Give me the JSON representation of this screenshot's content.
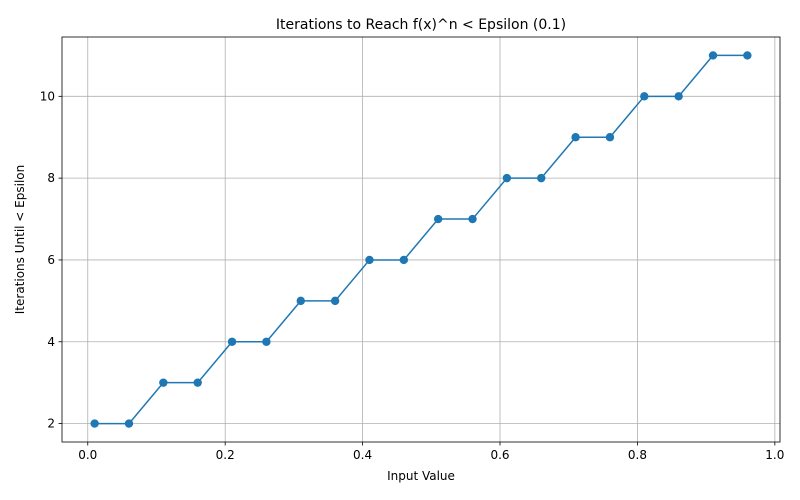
{
  "chart_data": {
    "type": "line",
    "title": "Iterations to Reach f(x)^n < Epsilon (0.1)",
    "xlabel": "Input Value",
    "ylabel": "Iterations Until < Epsilon",
    "xlim": [
      -0.0375,
      1.0075
    ],
    "ylim": [
      1.55,
      11.45
    ],
    "xticks": [
      "0.0",
      "0.2",
      "0.4",
      "0.6",
      "0.8",
      "1.0"
    ],
    "yticks": [
      "2",
      "4",
      "6",
      "8",
      "10"
    ],
    "grid": true,
    "marker": "circle",
    "color": "#1f77b4",
    "series": [
      {
        "x": [
          0.01,
          0.06,
          0.11,
          0.16,
          0.21,
          0.26,
          0.31,
          0.36,
          0.41,
          0.46,
          0.51,
          0.56,
          0.61,
          0.66,
          0.71,
          0.76,
          0.81,
          0.86,
          0.91,
          0.96
        ],
        "y": [
          2,
          2,
          3,
          3,
          4,
          4,
          5,
          5,
          6,
          6,
          7,
          7,
          8,
          8,
          9,
          9,
          10,
          10,
          11,
          11
        ]
      }
    ]
  }
}
